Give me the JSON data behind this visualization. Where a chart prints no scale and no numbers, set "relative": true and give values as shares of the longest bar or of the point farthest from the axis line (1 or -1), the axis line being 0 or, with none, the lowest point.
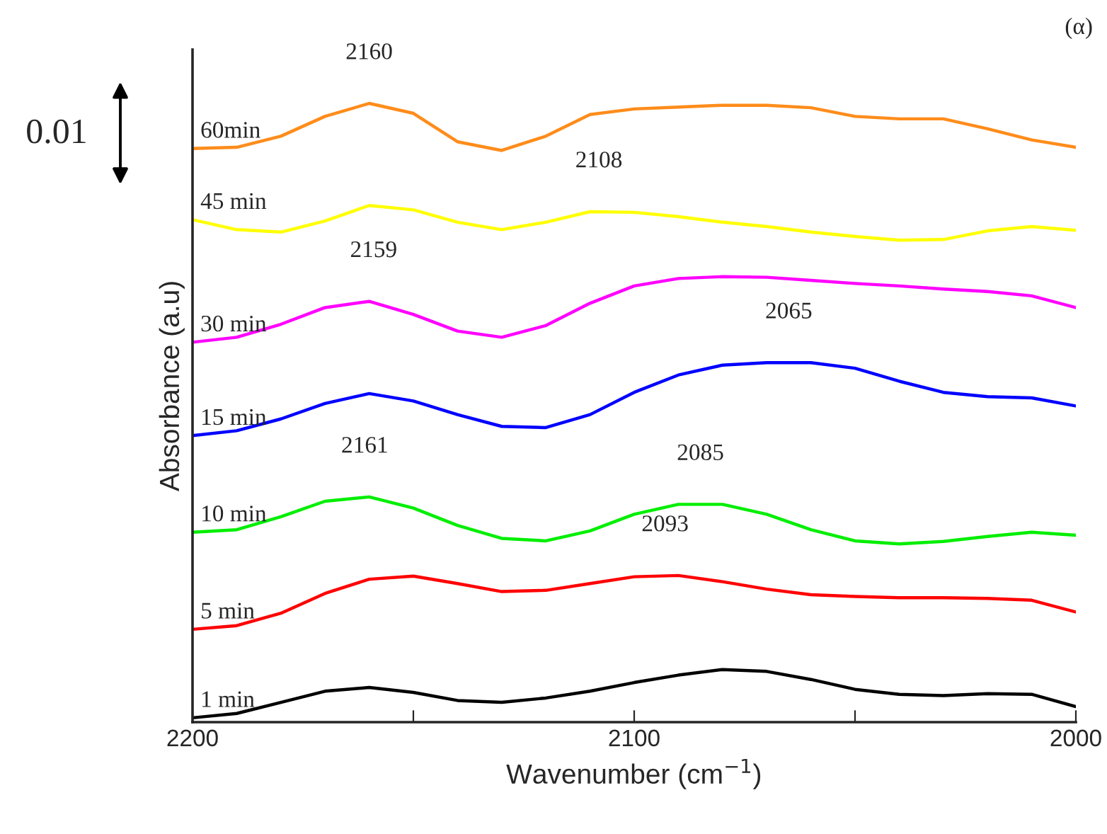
{
  "chart_data": {
    "type": "line",
    "relative": true,
    "xlabel": "Wavenumber (cm$^{−1}$)",
    "ylabel": "Absorbance (a.u)",
    "x": [
      2200,
      2190,
      2180,
      2170,
      2160,
      2150,
      2140,
      2130,
      2120,
      2110,
      2100,
      2090,
      2080,
      2070,
      2060,
      2050,
      2040,
      2030,
      2020,
      2010,
      2000
    ],
    "xlim": [
      2200,
      2000
    ],
    "xticks": [
      2200,
      {
        "value": 2150,
        "label": null
      },
      2100,
      {
        "value": 2050,
        "label": null
      },
      2000
    ],
    "series": [
      {
        "name": "1 min",
        "color": "#000000",
        "values": [
          0.007,
          0.014,
          0.032,
          0.05,
          0.056,
          0.048,
          0.035,
          0.032,
          0.039,
          0.05,
          0.064,
          0.076,
          0.085,
          0.082,
          0.069,
          0.053,
          0.045,
          0.043,
          0.046,
          0.045,
          0.025
        ]
      },
      {
        "name": "5 min",
        "color": "#ff0000",
        "values": [
          0.15,
          0.156,
          0.176,
          0.208,
          0.231,
          0.236,
          0.224,
          0.211,
          0.213,
          0.224,
          0.235,
          0.237,
          0.227,
          0.215,
          0.206,
          0.203,
          0.201,
          0.201,
          0.2,
          0.197,
          0.178
        ]
      },
      {
        "name": "10 min",
        "color": "#00ee00",
        "values": [
          0.307,
          0.311,
          0.332,
          0.357,
          0.364,
          0.346,
          0.318,
          0.297,
          0.293,
          0.309,
          0.336,
          0.352,
          0.352,
          0.336,
          0.311,
          0.293,
          0.288,
          0.292,
          0.3,
          0.307,
          0.302
        ]
      },
      {
        "name": "15 min",
        "color": "#0000ff",
        "values": [
          0.463,
          0.471,
          0.49,
          0.515,
          0.531,
          0.519,
          0.497,
          0.478,
          0.476,
          0.497,
          0.533,
          0.561,
          0.577,
          0.581,
          0.581,
          0.572,
          0.551,
          0.533,
          0.526,
          0.524,
          0.511
        ]
      },
      {
        "name": "30 min",
        "color": "#ff00ff",
        "values": [
          0.614,
          0.622,
          0.643,
          0.67,
          0.68,
          0.659,
          0.632,
          0.622,
          0.641,
          0.677,
          0.705,
          0.717,
          0.72,
          0.719,
          0.714,
          0.709,
          0.705,
          0.7,
          0.696,
          0.689,
          0.67
        ]
      },
      {
        "name": "45 min",
        "color": "#ffff00",
        "values": [
          0.812,
          0.796,
          0.792,
          0.81,
          0.835,
          0.828,
          0.808,
          0.796,
          0.808,
          0.825,
          0.824,
          0.817,
          0.808,
          0.801,
          0.792,
          0.785,
          0.779,
          0.78,
          0.794,
          0.801,
          0.795
        ]
      },
      {
        "name": "60min",
        "color": "#ff8c1a",
        "values": [
          0.927,
          0.929,
          0.947,
          0.979,
          1.0,
          0.984,
          0.938,
          0.924,
          0.947,
          0.982,
          0.991,
          0.994,
          0.997,
          0.997,
          0.993,
          0.979,
          0.975,
          0.975,
          0.959,
          0.941,
          0.929
        ]
      }
    ],
    "annotations": [
      {
        "text": "2160",
        "x": 2160,
        "y": 1.0
      },
      {
        "text": "2108",
        "x": 2108,
        "y": 0.825
      },
      {
        "text": "2159",
        "x": 2159,
        "y": 0.68
      },
      {
        "text": "2065",
        "x": 2065,
        "y": 0.581
      },
      {
        "text": "2161",
        "x": 2161,
        "y": 0.364
      },
      {
        "text": "2085",
        "x": 2085,
        "y": 0.352
      },
      {
        "text": "2093",
        "x": 2093,
        "y": 0.237
      },
      "(α)",
      "0.01"
    ]
  }
}
